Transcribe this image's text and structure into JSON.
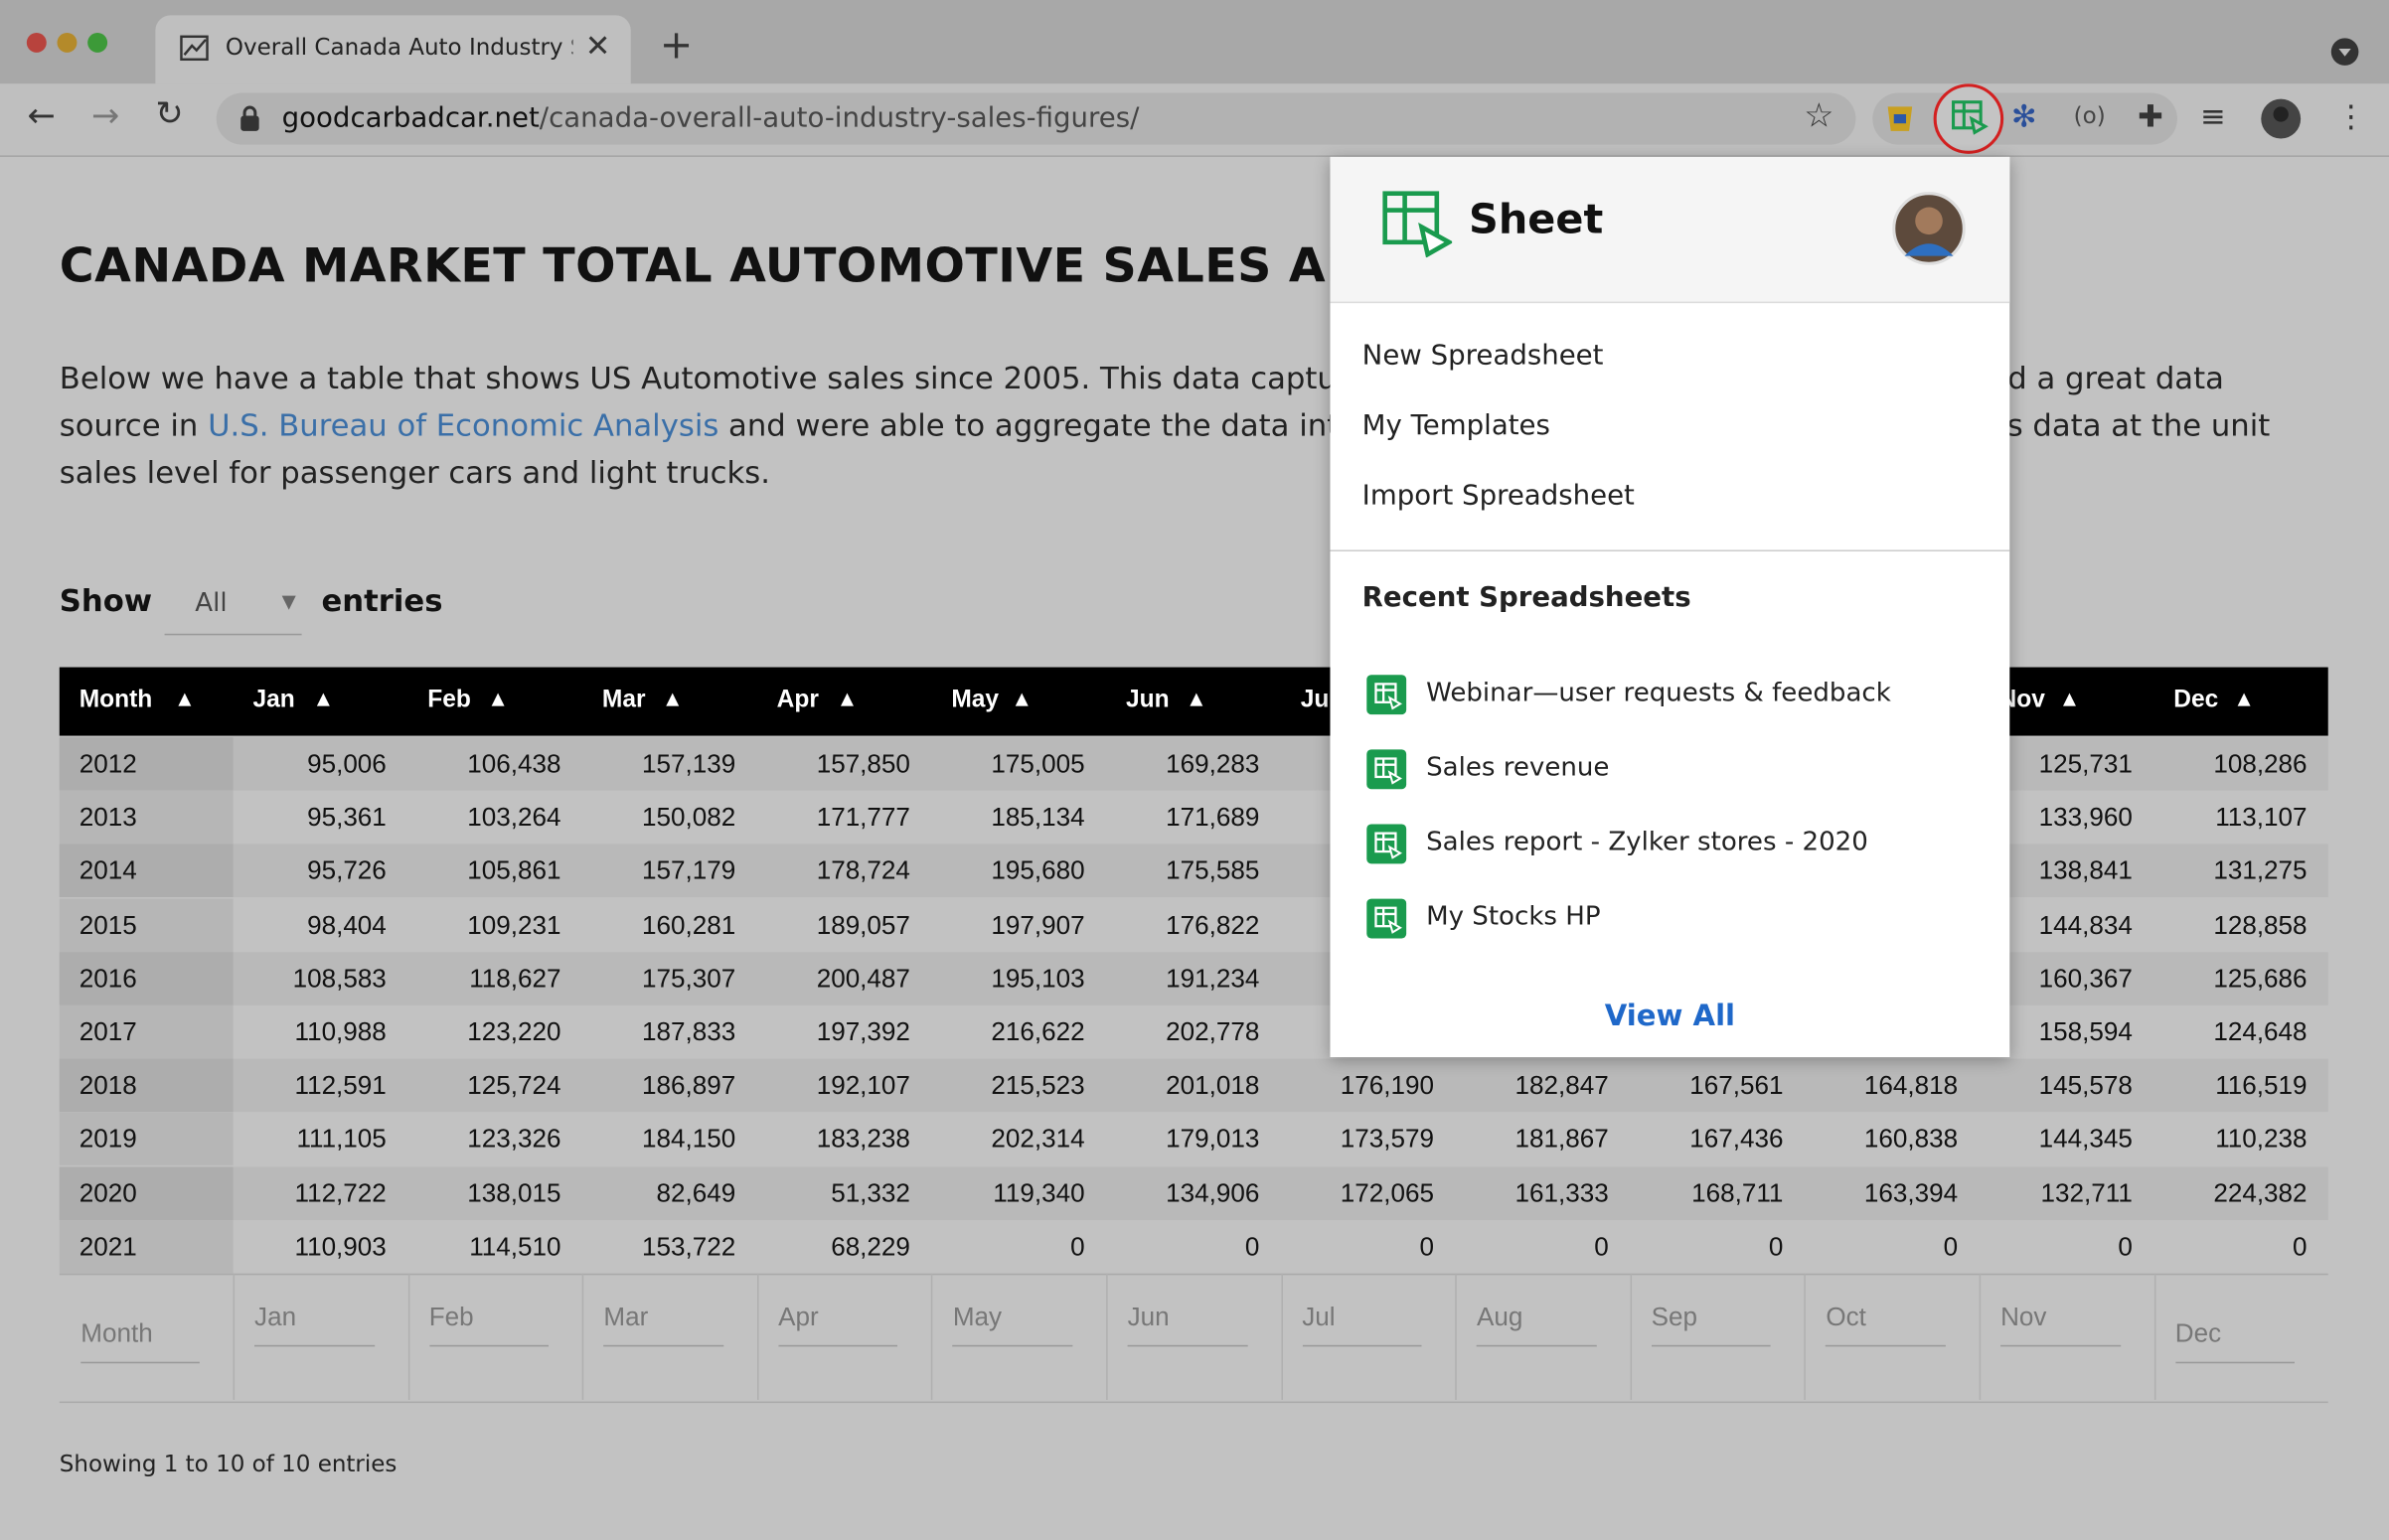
{
  "browser": {
    "tab_title": "Overall Canada Auto Industry S",
    "url_domain": "goodcarbadcar.net",
    "url_path": "/canada-overall-auto-industry-sales-figures/"
  },
  "page": {
    "heading": "CANADA MARKET TOTAL AUTOMOTIVE SALES ANNU",
    "intro": {
      "line1_left": "Below we have a table that shows US Automotive sales since 2005. This data captures",
      "line1_right": "nd a great data",
      "line2_start": "source in",
      "line2_link": "U.S. Bureau of Economic Analysis",
      "line2_left": "and were able to aggregate the data into t",
      "line2_right": "es data at the unit",
      "line3": "sales level for passenger cars and light trucks."
    },
    "show_label": "Show",
    "show_value": "All",
    "entries_label": "entries",
    "info": "Showing 1 to 10 of 10 entries"
  },
  "table": {
    "columns": [
      "Month",
      "Jan",
      "Feb",
      "Mar",
      "Apr",
      "May",
      "Jun",
      "Jul",
      "Aug",
      "Sep",
      "Oct",
      "Nov",
      "Dec"
    ],
    "rows": [
      [
        "2012",
        "95,006",
        "106,438",
        "157,139",
        "157,850",
        "175,005",
        "169,283",
        null,
        null,
        null,
        null,
        "125,731",
        "108,286"
      ],
      [
        "2013",
        "95,361",
        "103,264",
        "150,082",
        "171,777",
        "185,134",
        "171,689",
        null,
        null,
        null,
        null,
        "133,960",
        "113,107"
      ],
      [
        "2014",
        "95,726",
        "105,861",
        "157,179",
        "178,724",
        "195,680",
        "175,585",
        null,
        null,
        null,
        null,
        "138,841",
        "131,275"
      ],
      [
        "2015",
        "98,404",
        "109,231",
        "160,281",
        "189,057",
        "197,907",
        "176,822",
        null,
        null,
        null,
        null,
        "144,834",
        "128,858"
      ],
      [
        "2016",
        "108,583",
        "118,627",
        "175,307",
        "200,487",
        "195,103",
        "191,234",
        null,
        null,
        null,
        null,
        "160,367",
        "125,686"
      ],
      [
        "2017",
        "110,988",
        "123,220",
        "187,833",
        "197,392",
        "216,622",
        "202,778",
        null,
        null,
        null,
        null,
        "158,594",
        "124,648"
      ],
      [
        "2018",
        "112,591",
        "125,724",
        "186,897",
        "192,107",
        "215,523",
        "201,018",
        "176,190",
        "182,847",
        "167,561",
        "164,818",
        "145,578",
        "116,519"
      ],
      [
        "2019",
        "111,105",
        "123,326",
        "184,150",
        "183,238",
        "202,314",
        "179,013",
        "173,579",
        "181,867",
        "167,436",
        "160,838",
        "144,345",
        "110,238"
      ],
      [
        "2020",
        "112,722",
        "138,015",
        "82,649",
        "51,332",
        "119,340",
        "134,906",
        "172,065",
        "161,333",
        "168,711",
        "163,394",
        "132,711",
        "224,382"
      ],
      [
        "2021",
        "110,903",
        "114,510",
        "153,722",
        "68,229",
        "0",
        "0",
        "0",
        "0",
        "0",
        "0",
        "0",
        "0"
      ]
    ]
  },
  "popup": {
    "title": "Sheet",
    "menu": [
      "New Spreadsheet",
      "My Templates",
      "Import Spreadsheet"
    ],
    "recent_title": "Recent Spreadsheets",
    "recent": [
      "Webinar—user requests & feedback",
      "Sales revenue",
      "Sales report - Zylker stores - 2020",
      "My Stocks HP"
    ],
    "view_all": "View All"
  }
}
